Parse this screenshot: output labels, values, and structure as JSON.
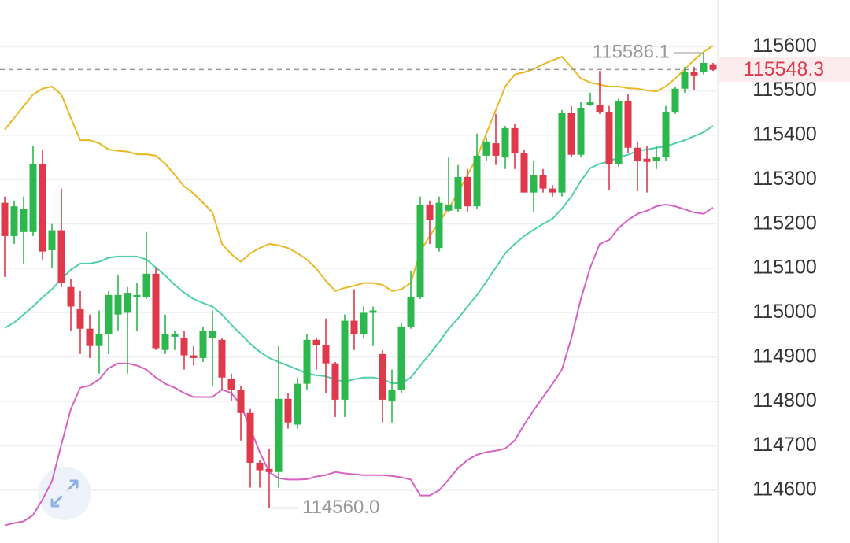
{
  "chart_data": {
    "type": "candlestick",
    "up_color": "#2db84d",
    "down_color": "#e0394b",
    "ylim": [
      114481,
      115705
    ],
    "yticks": [
      114600,
      114700,
      114800,
      114900,
      115000,
      115100,
      115200,
      115300,
      115400,
      115500,
      115600
    ],
    "grid": true,
    "open": [
      115248,
      115173,
      115182,
      115182,
      115336,
      115141,
      115186,
      115058,
      115008,
      114964,
      114925,
      114952,
      114996,
      115000,
      115035,
      115035,
      115088,
      114916,
      114946,
      114943,
      114904,
      114898,
      114943,
      114939,
      114850,
      114827,
      114774,
      114662,
      114648,
      114641,
      114806,
      114748,
      114840,
      114939,
      114928,
      114886,
      114804,
      114982,
      114952,
      115000,
      114907,
      114801,
      114827,
      114969,
      115035,
      115244,
      115146,
      115230,
      115235,
      115306,
      115240,
      115354,
      115382,
      115350,
      115416,
      115359,
      115271,
      115311,
      115280,
      115271,
      115451,
      115356,
      115469,
      115469,
      115453,
      115336,
      115478,
      115372,
      115347,
      115342,
      115350,
      115453,
      115505,
      115542,
      115542,
      115560
    ],
    "high": [
      115262,
      115253,
      115262,
      115377,
      115368,
      115200,
      115280,
      115076,
      115049,
      114996,
      115005,
      115049,
      115084,
      115058,
      115067,
      115182,
      115102,
      114996,
      114960,
      114960,
      114925,
      114969,
      115005,
      114943,
      114863,
      114836,
      114783,
      114668,
      114694,
      114925,
      114818,
      114854,
      114952,
      114943,
      114987,
      114889,
      114996,
      115053,
      115014,
      115014,
      114916,
      114872,
      114978,
      115093,
      115262,
      115253,
      115262,
      115350,
      115333,
      115324,
      115404,
      115395,
      115448,
      115421,
      115425,
      115368,
      115342,
      115324,
      115288,
      115457,
      115466,
      115475,
      115496,
      115545,
      115466,
      115483,
      115492,
      115386,
      115377,
      115377,
      115466,
      115510,
      115554,
      115554,
      115586.1,
      115563
    ],
    "low": [
      115081,
      115155,
      115111,
      115173,
      115120,
      115102,
      115058,
      114960,
      114907,
      114898,
      114863,
      114907,
      114960,
      114863,
      114960,
      115031,
      114916,
      114907,
      114916,
      114872,
      114881,
      114889,
      114836,
      114827,
      114801,
      114712,
      114606,
      114606,
      114560,
      114606,
      114739,
      114739,
      114827,
      114872,
      114818,
      114765,
      114765,
      114916,
      114943,
      114925,
      114753,
      114753,
      114818,
      114964,
      115031,
      115155,
      115138,
      115226,
      115226,
      115226,
      115235,
      115342,
      115333,
      115324,
      115324,
      115271,
      115226,
      115271,
      115262,
      115262,
      115350,
      115350,
      115466,
      115448,
      115276,
      115329,
      115359,
      115274,
      115271,
      115324,
      115342,
      115448,
      115496,
      115501,
      115537,
      115545
    ],
    "close": [
      115173,
      115240,
      115235,
      115336,
      115138,
      115186,
      115067,
      115014,
      114964,
      114925,
      114952,
      115040,
      115040,
      115045,
      115040,
      115088,
      114920,
      114952,
      114952,
      114904,
      114898,
      114960,
      114960,
      114854,
      114827,
      114774,
      114662,
      114645,
      114641,
      114806,
      114753,
      114840,
      114939,
      114928,
      114886,
      114804,
      114982,
      114952,
      115000,
      115005,
      114804,
      114827,
      114969,
      115035,
      115244,
      115209,
      115248,
      115244,
      115306,
      115240,
      115354,
      115386,
      115354,
      115416,
      115359,
      115271,
      115311,
      115280,
      115271,
      115451,
      115356,
      115462,
      115475,
      115453,
      115336,
      115478,
      115372,
      115342,
      115340,
      115350,
      115453,
      115505,
      115542,
      115535,
      115563,
      115548.3
    ],
    "bands": [
      {
        "color": "#e9b824",
        "values": [
          115413,
          115439,
          115466,
          115492,
          115505,
          115510,
          115492,
          115439,
          115389,
          115389,
          115382,
          115368,
          115365,
          115363,
          115357,
          115357,
          115354,
          115336,
          115311,
          115285,
          115269,
          115248,
          115226,
          115155,
          115132,
          115115,
          115134,
          115146,
          115155,
          115152,
          115146,
          115134,
          115120,
          115099,
          115072,
          115049,
          115056,
          115061,
          115067,
          115067,
          115063,
          115049,
          115053,
          115067,
          115138,
          115173,
          115205,
          115235,
          115271,
          115311,
          115350,
          115404,
          115457,
          115510,
          115537,
          115542,
          115549,
          115560,
          115569,
          115577,
          115554,
          115528,
          115519,
          115514,
          115510,
          115510,
          115506,
          115505,
          115501,
          115499,
          115510,
          115528,
          115549,
          115570,
          115588,
          115602
        ]
      },
      {
        "color": "#4fd0ad",
        "values": [
          114966,
          114978,
          114996,
          115014,
          115035,
          115053,
          115076,
          115097,
          115111,
          115111,
          115115,
          115124,
          115127,
          115127,
          115127,
          115120,
          115102,
          115084,
          115063,
          115045,
          115031,
          115022,
          115014,
          114996,
          114973,
          114952,
          114930,
          114912,
          114898,
          114889,
          114881,
          114872,
          114863,
          114859,
          114857,
          114849,
          114845,
          114850,
          114854,
          114854,
          114850,
          114841,
          114841,
          114854,
          114881,
          114907,
          114934,
          114964,
          114987,
          115014,
          115040,
          115070,
          115102,
          115134,
          115155,
          115173,
          115187,
          115200,
          115212,
          115235,
          115262,
          115297,
          115326,
          115336,
          115341,
          115350,
          115356,
          115365,
          115368,
          115372,
          115375,
          115382,
          115389,
          115398,
          115407,
          115421
        ]
      },
      {
        "color": "#d862c2",
        "values": [
          114521,
          114526,
          114530,
          114544,
          114579,
          114620,
          114703,
          114783,
          114831,
          114836,
          114850,
          114875,
          114886,
          114886,
          114881,
          114872,
          114854,
          114840,
          114831,
          114819,
          114810,
          114810,
          114810,
          114827,
          114819,
          114792,
          114739,
          114686,
          114641,
          114627,
          114624,
          114624,
          114625,
          114631,
          114634,
          114641,
          114638,
          114636,
          114634,
          114634,
          114634,
          114632,
          114629,
          114624,
          114588,
          114588,
          114600,
          114624,
          114650,
          114668,
          114680,
          114686,
          114689,
          114694,
          114712,
          114748,
          114780,
          114810,
          114840,
          114872,
          114943,
          115031,
          115102,
          115155,
          115164,
          115191,
          115209,
          115223,
          115230,
          115240,
          115244,
          115240,
          115233,
          115226,
          115223,
          115237
        ]
      }
    ],
    "high_mark": 115586.1,
    "low_mark": {
      "value": 114560,
      "label": "114560.0"
    }
  }
}
